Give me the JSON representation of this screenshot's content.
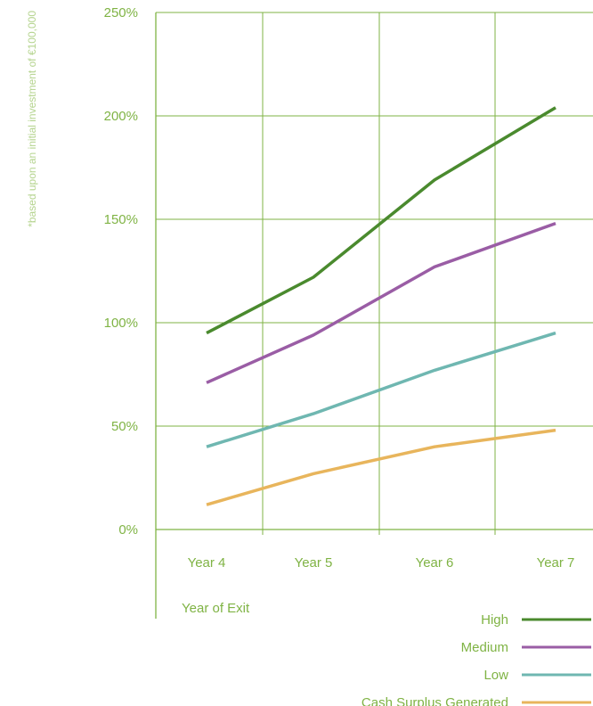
{
  "chart_data": {
    "type": "line",
    "categories": [
      "Year 4",
      "Year 5",
      "Year 6",
      "Year 7"
    ],
    "series": [
      {
        "name": "High",
        "color": "#4a8a2e",
        "values": [
          95,
          122,
          169,
          204
        ]
      },
      {
        "name": "Medium",
        "color": "#9a5da5",
        "values": [
          71,
          94,
          127,
          148
        ]
      },
      {
        "name": "Low",
        "color": "#6fb7b1",
        "values": [
          40,
          56,
          77,
          95
        ]
      },
      {
        "name": "Cash Surplus Generated",
        "color": "#e8b55c",
        "values": [
          12,
          27,
          40,
          48
        ]
      }
    ],
    "y_ticks": [
      "0%",
      "50%",
      "100%",
      "150%",
      "200%",
      "250%"
    ],
    "ylim": [
      0,
      250
    ],
    "xlabel": "Year of Exit",
    "ylabel": "",
    "note": "*based upon an initial investment of €100,000",
    "grid": true,
    "legend_position": "bottom-right",
    "axis_color": "#7fb344"
  }
}
